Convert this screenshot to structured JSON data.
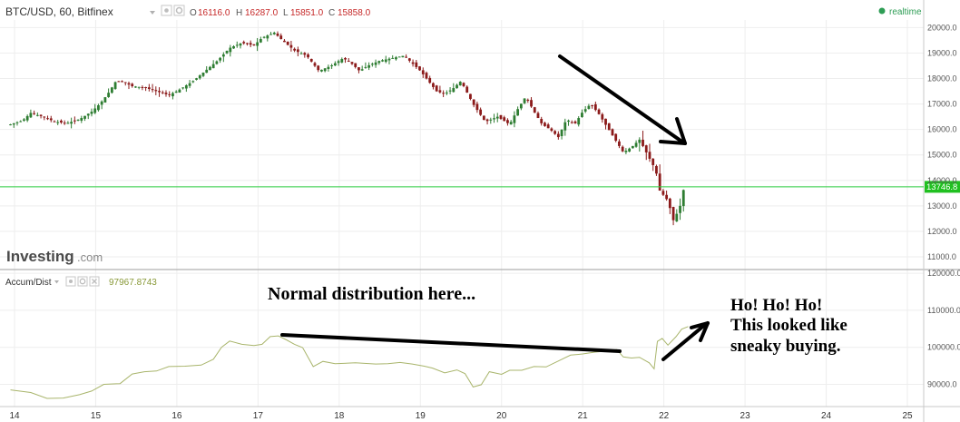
{
  "header": {
    "symbol": "BTC/USD, 60, Bitfinex",
    "o_label": "O",
    "o_value": "16116.0",
    "h_label": "H",
    "h_value": "16287.0",
    "l_label": "L",
    "l_value": "15851.0",
    "c_label": "C",
    "c_value": "15858.0",
    "realtime_label": "realtime"
  },
  "watermark": {
    "brand": "Investing",
    "suffix": ".com"
  },
  "indicator": {
    "name": "Accum/Dist",
    "value": "97967.8743"
  },
  "price_label": "13746.8",
  "annotations": {
    "normal_distribution": "Normal distribution here...",
    "ho_line1": "Ho! Ho! Ho!",
    "ho_line2": "This looked like",
    "ho_line3": "sneaky buying."
  },
  "colors": {
    "up_candle": "#2e7d32",
    "down_candle": "#8b1a1a",
    "indicator_line": "#a9b56c",
    "price_line": "#2ecc40",
    "price_label_bg": "#20c020",
    "realtime_dot": "#2e9d55",
    "grid": "#eeeeee"
  },
  "chart_data": [
    {
      "type": "candlestick",
      "title": "BTC/USD, 60, Bitfinex",
      "x_label": "",
      "y_label": "",
      "x_ticks": [
        "14",
        "15",
        "16",
        "17",
        "18",
        "19",
        "20",
        "21",
        "22",
        "23",
        "24",
        "25"
      ],
      "y_ticks": [
        "11000.0",
        "12000.0",
        "13000.0",
        "14000.0",
        "15000.0",
        "16000.0",
        "17000.0",
        "18000.0",
        "19000.0",
        "20000.0"
      ],
      "y_range": [
        10500,
        20300
      ],
      "x_range": [
        13.9,
        25.2
      ],
      "current_price": 13746.8,
      "grid": true,
      "price_path": [
        [
          13.95,
          16200
        ],
        [
          14.1,
          16350
        ],
        [
          14.2,
          16650
        ],
        [
          14.35,
          16500
        ],
        [
          14.5,
          16300
        ],
        [
          14.65,
          16250
        ],
        [
          14.8,
          16400
        ],
        [
          14.95,
          16700
        ],
        [
          15.05,
          17000
        ],
        [
          15.15,
          17400
        ],
        [
          15.25,
          17900
        ],
        [
          15.35,
          17850
        ],
        [
          15.45,
          17700
        ],
        [
          15.6,
          17650
        ],
        [
          15.75,
          17500
        ],
        [
          15.9,
          17350
        ],
        [
          16.0,
          17500
        ],
        [
          16.1,
          17700
        ],
        [
          16.2,
          17900
        ],
        [
          16.35,
          18300
        ],
        [
          16.5,
          18700
        ],
        [
          16.65,
          19200
        ],
        [
          16.8,
          19400
        ],
        [
          16.95,
          19300
        ],
        [
          17.05,
          19600
        ],
        [
          17.2,
          19800
        ],
        [
          17.3,
          19500
        ],
        [
          17.45,
          19100
        ],
        [
          17.6,
          18900
        ],
        [
          17.75,
          18300
        ],
        [
          17.9,
          18500
        ],
        [
          18.05,
          18800
        ],
        [
          18.15,
          18600
        ],
        [
          18.25,
          18300
        ],
        [
          18.35,
          18500
        ],
        [
          18.5,
          18700
        ],
        [
          18.65,
          18800
        ],
        [
          18.8,
          18900
        ],
        [
          18.9,
          18600
        ],
        [
          19.0,
          18300
        ],
        [
          19.1,
          17900
        ],
        [
          19.2,
          17500
        ],
        [
          19.3,
          17400
        ],
        [
          19.4,
          17600
        ],
        [
          19.5,
          17900
        ],
        [
          19.65,
          17000
        ],
        [
          19.8,
          16300
        ],
        [
          19.95,
          16500
        ],
        [
          20.1,
          16200
        ],
        [
          20.2,
          16800
        ],
        [
          20.3,
          17300
        ],
        [
          20.4,
          16700
        ],
        [
          20.5,
          16200
        ],
        [
          20.6,
          16000
        ],
        [
          20.7,
          15700
        ],
        [
          20.8,
          16400
        ],
        [
          20.9,
          16200
        ],
        [
          21.0,
          16700
        ],
        [
          21.1,
          17000
        ],
        [
          21.2,
          16600
        ],
        [
          21.3,
          16100
        ],
        [
          21.4,
          15600
        ],
        [
          21.5,
          15100
        ],
        [
          21.6,
          15300
        ],
        [
          21.7,
          15600
        ],
        [
          21.8,
          15000
        ],
        [
          21.9,
          14400
        ],
        [
          21.95,
          13600
        ],
        [
          22.05,
          13200
        ],
        [
          22.12,
          12400
        ],
        [
          22.2,
          13000
        ],
        [
          22.25,
          13746.8
        ]
      ]
    },
    {
      "type": "line",
      "title": "Accum/Dist",
      "x_label": "",
      "y_label": "",
      "y_ticks": [
        "90000.0",
        "100000.0",
        "110000.0",
        "120000.0"
      ],
      "y_range": [
        84000,
        121000
      ],
      "x_range": [
        13.9,
        25.2
      ],
      "grid": true,
      "series": [
        {
          "name": "Accum/Dist",
          "values": [
            [
              13.95,
              88500
            ],
            [
              14.2,
              87800
            ],
            [
              14.4,
              86200
            ],
            [
              14.6,
              86300
            ],
            [
              14.8,
              87200
            ],
            [
              14.95,
              88200
            ],
            [
              15.1,
              90000
            ],
            [
              15.3,
              90200
            ],
            [
              15.45,
              92800
            ],
            [
              15.6,
              93400
            ],
            [
              15.75,
              93600
            ],
            [
              15.9,
              94800
            ],
            [
              16.1,
              94900
            ],
            [
              16.3,
              95200
            ],
            [
              16.45,
              96800
            ],
            [
              16.55,
              100000
            ],
            [
              16.65,
              101700
            ],
            [
              16.8,
              100800
            ],
            [
              16.95,
              100500
            ],
            [
              17.05,
              100800
            ],
            [
              17.15,
              102900
            ],
            [
              17.25,
              103100
            ],
            [
              17.35,
              102000
            ],
            [
              17.45,
              100800
            ],
            [
              17.55,
              99900
            ],
            [
              17.68,
              94800
            ],
            [
              17.8,
              96200
            ],
            [
              17.95,
              95600
            ],
            [
              18.2,
              95800
            ],
            [
              18.45,
              95500
            ],
            [
              18.6,
              95600
            ],
            [
              18.75,
              95900
            ],
            [
              18.9,
              95500
            ],
            [
              19.05,
              94900
            ],
            [
              19.15,
              94400
            ],
            [
              19.3,
              93100
            ],
            [
              19.45,
              93900
            ],
            [
              19.55,
              92900
            ],
            [
              19.65,
              89300
            ],
            [
              19.75,
              89900
            ],
            [
              19.85,
              93400
            ],
            [
              20.0,
              92700
            ],
            [
              20.1,
              93800
            ],
            [
              20.25,
              93800
            ],
            [
              20.4,
              94800
            ],
            [
              20.55,
              94700
            ],
            [
              20.7,
              96300
            ],
            [
              20.85,
              97900
            ],
            [
              21.0,
              98200
            ],
            [
              21.15,
              98700
            ],
            [
              21.3,
              99000
            ],
            [
              21.42,
              99400
            ],
            [
              21.5,
              97400
            ],
            [
              21.6,
              97100
            ],
            [
              21.7,
              97300
            ],
            [
              21.82,
              95800
            ],
            [
              21.88,
              94200
            ],
            [
              21.92,
              101600
            ],
            [
              21.98,
              102400
            ],
            [
              22.05,
              100600
            ],
            [
              22.15,
              102900
            ],
            [
              22.22,
              104900
            ],
            [
              22.3,
              105600
            ]
          ]
        }
      ]
    }
  ]
}
